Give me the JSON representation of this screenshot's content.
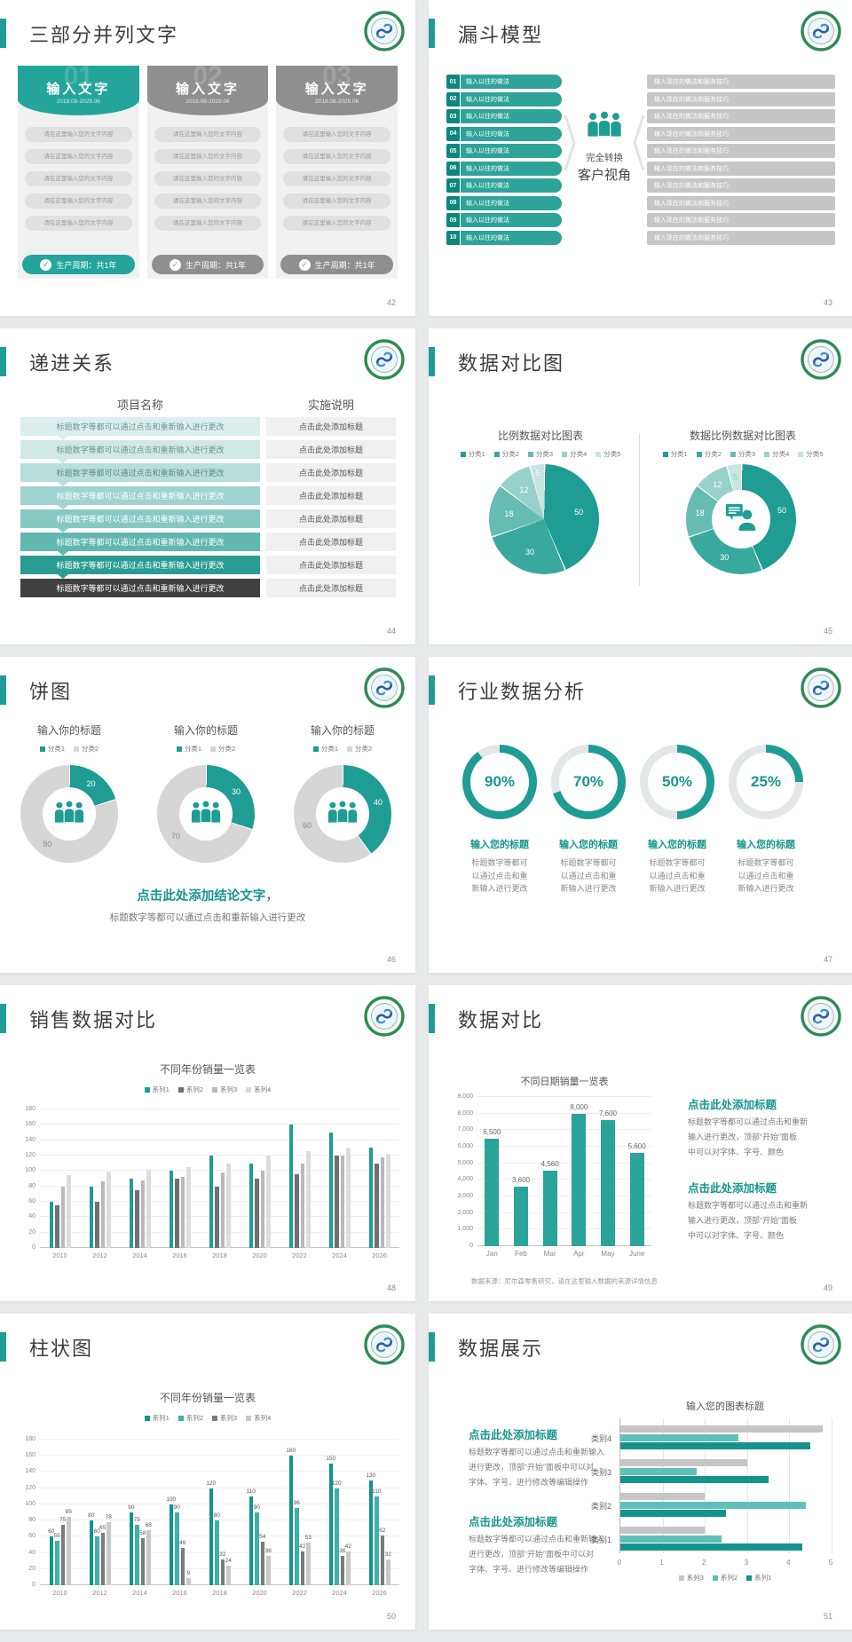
{
  "colors": {
    "teal": "#1f9c93",
    "teal_dark": "#0d867e",
    "teal_funnel": "#2ea39a",
    "gray_funnel": "#c6c6c6",
    "gray_header": "#8f8f8f",
    "dark_row": "#404040",
    "pie": [
      "#1f9c93",
      "#39a9a0",
      "#66bcb3",
      "#98d1ca",
      "#c7e5e1"
    ],
    "donut_gray": "#d6d6d6",
    "ring_rest": "#e4e7e7",
    "bar_series48": [
      "#1f9c93",
      "#707070",
      "#b9b9b9",
      "#dcdcdc"
    ],
    "bar_series50": [
      "#13948b",
      "#3fb1a7",
      "#7b7b7b",
      "#c9c9c9"
    ],
    "bar49": "#2aa49b",
    "hbar_series51": [
      "#c6c6c6",
      "#5fc0b7",
      "#13948b"
    ],
    "row44_colors": [
      "#dcefee",
      "#cfe9e7",
      "#b7dedb",
      "#9fd4d0",
      "#86c9c4",
      "#62b8b1",
      "#2b9c93",
      "#404040"
    ],
    "row44_text_colors": [
      "#6f9591",
      "#6f9591",
      "#5d8a86",
      "#ffffff",
      "#ffffff",
      "#ffffff",
      "#ffffff",
      "#ffffff"
    ]
  },
  "icons": {
    "check": "✓"
  },
  "slides": {
    "s42": {
      "number": "42",
      "title": "三部分并列文字",
      "card_title": "输入文字",
      "card_date": "2018.08-2029.06",
      "pills": [
        "请在这里输入您的文字内容",
        "请在这里输入您的文字内容",
        "请在这里输入您的文字内容",
        "请在这里输入您的文字内容",
        "请在这里输入您的文字内容"
      ],
      "footer": "生产周期：共1年",
      "cards": [
        {
          "num": "01",
          "style": "teal"
        },
        {
          "num": "02",
          "style": "gray"
        },
        {
          "num": "03",
          "style": "gray"
        }
      ]
    },
    "s43": {
      "number": "43",
      "title": "漏斗模型",
      "numbers": [
        "01",
        "02",
        "03",
        "04",
        "05",
        "06",
        "07",
        "08",
        "09",
        "10"
      ],
      "left_item": "输入以往的做法",
      "right_item": "输入现在的做法和服务技巧",
      "center_line1": "完全转换",
      "center_line2": "客户视角"
    },
    "s44": {
      "number": "44",
      "title": "递进关系",
      "col1_header": "项目名称",
      "col2_header": "实施说明",
      "row_text": "标题数字等都可以通过点击和重新输入进行更改",
      "right_text": "点击此处添加标题",
      "row_count": 8
    },
    "s45": {
      "number": "45",
      "title": "数据对比图"
    },
    "s46": {
      "number": "46",
      "title": "饼图",
      "conclusion_title": "点击此处添加结论文字",
      "conclusion_comma": "，",
      "conclusion_body": "标题数字等都可以通过点击和重新输入进行更改"
    },
    "s47": {
      "number": "47",
      "title": "行业数据分析",
      "item_title": "输入您的标题",
      "item_body_lines": [
        "标题数字等都可",
        "以通过点击和重",
        "新输入进行更改"
      ]
    },
    "s48": {
      "number": "48",
      "title": "销售数据对比"
    },
    "s49": {
      "number": "49",
      "title": "数据对比",
      "note": "数据来源：尼尔森零售研究，请在这里输入数据的来源详情信息",
      "blocks": [
        {
          "heading": "点击此处添加标题",
          "lines": [
            "标题数字等都可以通过点击和重新",
            "输入进行更改，顶部“开始”面板",
            "中可以对字体、字号、颜色"
          ]
        },
        {
          "heading": "点击此处添加标题",
          "lines": [
            "标题数字等都可以通过点击和重新",
            "输入进行更改，顶部“开始”面板",
            "中可以对字体、字号、颜色"
          ]
        }
      ]
    },
    "s50": {
      "number": "50",
      "title": "柱状图"
    },
    "s51": {
      "number": "51",
      "title": "数据展示",
      "blocks": [
        {
          "heading": "点击此处添加标题",
          "lines": [
            "标题数字等都可以通过点击和重新输入",
            "进行更改，顶部“开始”面板中可以对",
            "字体、字号、进行修改等编辑操作"
          ]
        },
        {
          "heading": "点击此处添加标题",
          "lines": [
            "标题数字等都可以通过点击和重新输入",
            "进行更改，顶部“开始”面板中可以对",
            "字体、字号、进行修改等编辑操作"
          ]
        }
      ]
    }
  },
  "chart_data": [
    {
      "id": "pie45",
      "type": "pie",
      "title": "比例数据对比图表",
      "legend": [
        "分类1",
        "分类2",
        "分类3",
        "分类4",
        "分类5"
      ],
      "values": [
        50,
        30,
        18,
        12,
        5
      ]
    },
    {
      "id": "donut45",
      "type": "pie",
      "title": "数据比例数据对比图表",
      "legend": [
        "分类1",
        "分类2",
        "分类3",
        "分类4",
        "分类5"
      ],
      "values": [
        50,
        30,
        18,
        12,
        5
      ],
      "center_icon": "person-speech"
    },
    {
      "id": "donuts46",
      "type": "pie",
      "title": "输入你的标题",
      "legend": [
        "分类1",
        "分类2"
      ],
      "charts": [
        [
          20,
          80
        ],
        [
          30,
          70
        ],
        [
          40,
          60
        ]
      ],
      "center_icon": "people-group"
    },
    {
      "id": "rings47",
      "type": "pie",
      "values": [
        90,
        70,
        50,
        25
      ],
      "labels": [
        "90%",
        "70%",
        "50%",
        "25%"
      ]
    },
    {
      "id": "bar48",
      "type": "bar",
      "title": "不同年份销量一览表",
      "categories": [
        "2010",
        "2012",
        "2014",
        "2016",
        "2018",
        "2020",
        "2022",
        "2024",
        "2026"
      ],
      "series": [
        {
          "name": "系列1",
          "values": [
            60,
            80,
            90,
            100,
            120,
            110,
            160,
            150,
            130
          ]
        },
        {
          "name": "系列2",
          "values": [
            55,
            60,
            75,
            90,
            80,
            90,
            96,
            120,
            110
          ]
        },
        {
          "name": "系列3",
          "values": [
            80,
            86,
            88,
            92,
            98,
            100,
            110,
            120,
            118
          ]
        },
        {
          "name": "系列4",
          "values": [
            95,
            99,
            102,
            105,
            110,
            120,
            126,
            130,
            122
          ]
        }
      ],
      "ylim": [
        0,
        180
      ],
      "ytick": 20,
      "grid": true,
      "legend_position": "top"
    },
    {
      "id": "bar49",
      "type": "bar",
      "title": "不同日期销量一览表",
      "categories": [
        "Jan",
        "Feb",
        "Mar",
        "Apr",
        "May",
        "June"
      ],
      "series": [
        {
          "name": "销量",
          "values": [
            6500,
            3600,
            4560,
            8000,
            7600,
            5600
          ]
        }
      ],
      "data_labels": [
        "6,500",
        "3,600",
        "4,560",
        "8,000",
        "7,600",
        "5,600"
      ],
      "ylim": [
        0,
        9000
      ],
      "ytick": 1000,
      "grid": true,
      "ytick_labels": [
        "0",
        "1,000",
        "2,000",
        "3,000",
        "4,000",
        "5,000",
        "6,000",
        "7,000",
        "8,000",
        "9,000"
      ]
    },
    {
      "id": "bar50",
      "type": "bar",
      "title": "不同年份销量一览表",
      "categories": [
        "2010",
        "2012",
        "2014",
        "2016",
        "2018",
        "2020",
        "2022",
        "2024",
        "2026"
      ],
      "series": [
        {
          "name": "系列1",
          "values": [
            60,
            80,
            90,
            100,
            120,
            110,
            160,
            150,
            130
          ]
        },
        {
          "name": "系列2",
          "values": [
            55,
            60,
            75,
            90,
            80,
            90,
            96,
            120,
            110
          ]
        },
        {
          "name": "系列3",
          "values": [
            75,
            65,
            58,
            46,
            32,
            54,
            42,
            36,
            62
          ]
        },
        {
          "name": "系列4",
          "values": [
            85,
            78,
            68,
            9,
            24,
            36,
            53,
            42,
            32
          ]
        }
      ],
      "ylim": [
        0,
        180
      ],
      "ytick": 20,
      "grid": true,
      "data_labels": true,
      "legend_position": "top"
    },
    {
      "id": "hbar51",
      "type": "bar",
      "title": "输入您的图表标题",
      "categories": [
        "类别1",
        "类别2",
        "类别3",
        "类别4"
      ],
      "series": [
        {
          "name": "系列3",
          "values": [
            2.0,
            2.0,
            3.0,
            4.8
          ]
        },
        {
          "name": "系列2",
          "values": [
            2.4,
            4.4,
            1.8,
            2.8
          ]
        },
        {
          "name": "系列1",
          "values": [
            4.3,
            2.5,
            3.5,
            4.5
          ]
        }
      ],
      "xlim": [
        0,
        5
      ],
      "xticks": [
        "0",
        "1",
        "2",
        "3",
        "4",
        "5"
      ],
      "legend_position": "bottom"
    }
  ]
}
